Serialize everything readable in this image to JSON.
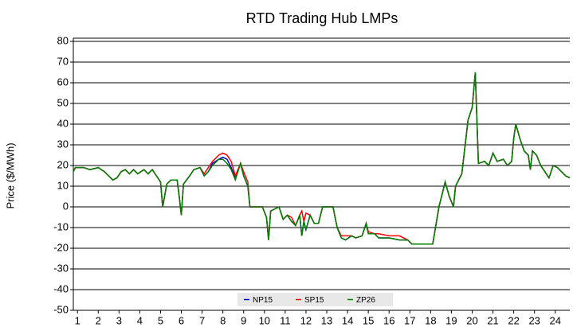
{
  "chart_data": {
    "type": "line",
    "title": "RTD Trading Hub LMPs",
    "y_label": "Price ($/MWh)",
    "x": [
      0.8,
      0.9,
      1.3,
      1.6,
      2.0,
      2.3,
      2.5,
      2.7,
      2.9,
      3.1,
      3.3,
      3.5,
      3.7,
      3.9,
      4.2,
      4.4,
      4.6,
      4.8,
      5.0,
      5.1,
      5.3,
      5.5,
      5.8,
      5.9,
      6.0,
      6.1,
      6.4,
      6.6,
      6.9,
      7.1,
      7.3,
      7.5,
      7.8,
      8.0,
      8.2,
      8.4,
      8.6,
      8.85,
      9.0,
      9.2,
      9.3,
      9.9,
      10.1,
      10.2,
      10.3,
      10.7,
      10.9,
      11.1,
      11.3,
      11.5,
      11.7,
      11.8,
      11.9,
      12.0,
      12.2,
      12.4,
      12.6,
      12.8,
      13.3,
      13.5,
      13.7,
      13.9,
      14.2,
      14.4,
      14.7,
      14.9,
      15.0,
      15.3,
      15.5,
      16.0,
      16.5,
      16.9,
      17.1,
      17.6,
      18.1,
      18.4,
      18.7,
      18.9,
      19.1,
      19.2,
      19.5,
      19.8,
      20.0,
      20.15,
      20.3,
      20.6,
      20.8,
      21.0,
      21.2,
      21.5,
      21.7,
      21.9,
      22.0,
      22.1,
      22.3,
      22.5,
      22.7,
      22.8,
      22.9,
      23.1,
      23.3,
      23.5,
      23.7,
      23.9,
      24.1,
      24.3,
      24.5,
      24.7
    ],
    "series": [
      {
        "name": "NP15",
        "color": "#0000cc",
        "values": [
          17,
          19,
          19,
          18,
          19,
          17,
          15,
          13,
          14,
          17,
          18,
          16,
          18,
          16,
          18,
          16,
          18,
          15,
          12,
          0,
          11,
          13,
          13,
          5,
          -4,
          11,
          15,
          18,
          19,
          15,
          17,
          21,
          23,
          24,
          23,
          19,
          14,
          21,
          15,
          10,
          0,
          0,
          -5,
          -16,
          -2,
          0,
          -6,
          -4,
          -7,
          -9,
          -4,
          -14,
          -7,
          -11,
          -4,
          -8,
          -8,
          0,
          0,
          -10,
          -15,
          -16,
          -14,
          -15,
          -14,
          -8,
          -13,
          -13,
          -15,
          -15,
          -16,
          -16,
          -18,
          -18,
          -18,
          0,
          12,
          5,
          0,
          10,
          16,
          42,
          48,
          65,
          21,
          22,
          20,
          26,
          22,
          23,
          20,
          22,
          33,
          40,
          33,
          27,
          25,
          18,
          27,
          25,
          20,
          17,
          14,
          20,
          19,
          17,
          15,
          14
        ]
      },
      {
        "name": "SP15",
        "color": "#ff0000",
        "values": [
          17,
          19,
          19,
          18,
          19,
          17,
          15,
          13,
          14,
          17,
          18,
          16,
          18,
          16,
          18,
          16,
          18,
          15,
          12,
          0,
          11,
          13,
          13,
          5,
          -4,
          11,
          15,
          18,
          19,
          16,
          19,
          22,
          25,
          26,
          25,
          22,
          15,
          21,
          17,
          12,
          0,
          0,
          -5,
          -16,
          -2,
          0,
          -6,
          -4,
          -5,
          -9,
          -4,
          -2,
          -7,
          -3,
          -4,
          -8,
          -8,
          0,
          0,
          -10,
          -14,
          -14,
          -14,
          -15,
          -14,
          -8,
          -12,
          -13,
          -13,
          -14,
          -14,
          -16,
          -18,
          -18,
          -18,
          0,
          12,
          5,
          0,
          10,
          16,
          42,
          48,
          65,
          21,
          22,
          20,
          26,
          22,
          23,
          20,
          22,
          33,
          40,
          33,
          27,
          25,
          18,
          27,
          25,
          20,
          17,
          14,
          20,
          19,
          17,
          15,
          14
        ]
      },
      {
        "name": "ZP26",
        "color": "#008000",
        "values": [
          17,
          19,
          19,
          18,
          19,
          17,
          15,
          13,
          14,
          17,
          18,
          16,
          18,
          16,
          18,
          16,
          18,
          15,
          12,
          0,
          11,
          13,
          13,
          5,
          -4,
          11,
          15,
          18,
          19,
          15,
          17,
          20,
          23,
          23,
          21,
          18,
          13,
          21,
          15,
          10,
          0,
          0,
          -5,
          -16,
          -2,
          0,
          -6,
          -4,
          -7,
          -9,
          -4,
          -14,
          -7,
          -11,
          -4,
          -8,
          -8,
          0,
          0,
          -10,
          -15,
          -16,
          -14,
          -15,
          -14,
          -8,
          -13,
          -13,
          -15,
          -15,
          -16,
          -16,
          -18,
          -18,
          -18,
          0,
          12,
          5,
          0,
          10,
          16,
          42,
          48,
          65,
          21,
          22,
          20,
          26,
          22,
          23,
          20,
          22,
          33,
          40,
          33,
          27,
          25,
          18,
          27,
          25,
          20,
          17,
          14,
          20,
          19,
          17,
          15,
          14
        ]
      }
    ],
    "xlim": [
      0.8,
      24.7
    ],
    "xticks": [
      1,
      2,
      3,
      4,
      5,
      6,
      7,
      8,
      9,
      10,
      11,
      12,
      13,
      14,
      15,
      16,
      17,
      18,
      19,
      20,
      21,
      22,
      23,
      24
    ],
    "ylim": [
      -50,
      80
    ],
    "yticks": [
      -50,
      -40,
      -30,
      -20,
      -10,
      0,
      10,
      20,
      30,
      40,
      50,
      60,
      70,
      80
    ],
    "grid": true,
    "legend": "bottom"
  }
}
